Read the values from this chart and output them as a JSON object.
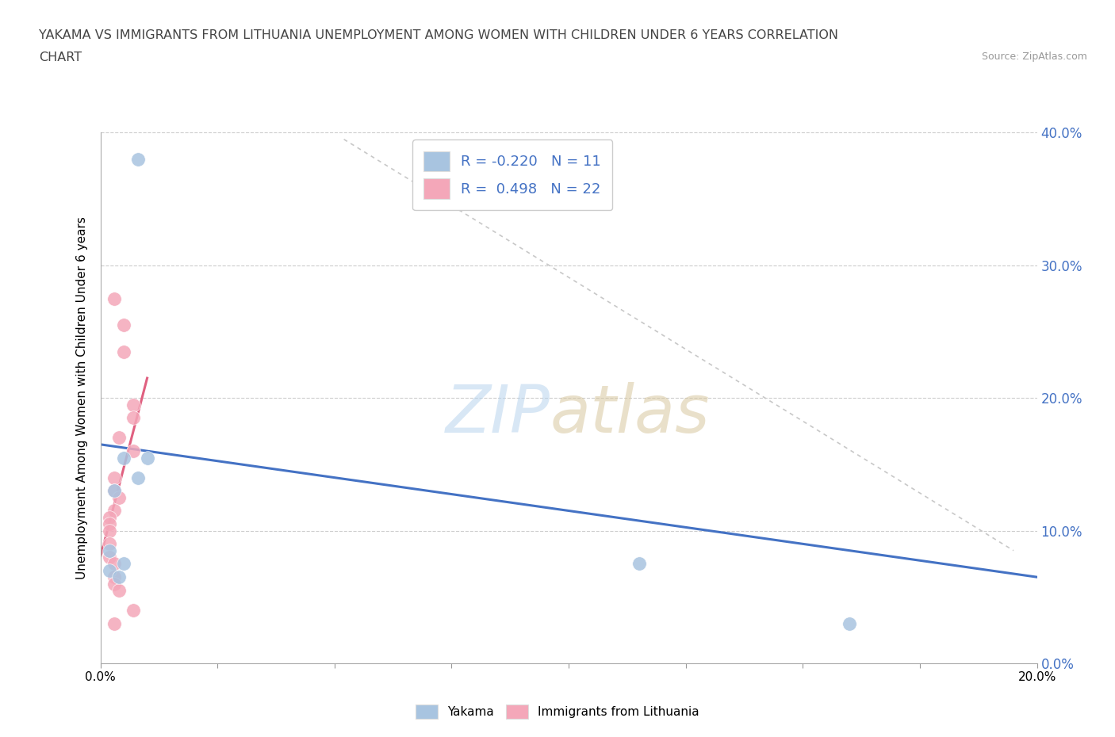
{
  "title_line1": "YAKAMA VS IMMIGRANTS FROM LITHUANIA UNEMPLOYMENT AMONG WOMEN WITH CHILDREN UNDER 6 YEARS CORRELATION",
  "title_line2": "CHART",
  "source": "Source: ZipAtlas.com",
  "ylabel": "Unemployment Among Women with Children Under 6 years",
  "xlim": [
    0,
    0.2
  ],
  "ylim": [
    0,
    0.4
  ],
  "yakama_color": "#a8c4e0",
  "lithuania_color": "#f4a7b9",
  "yakama_line_color": "#4472c4",
  "lithuania_line_color": "#e06080",
  "diag_line_color": "#c8c8c8",
  "R_yakama": -0.22,
  "N_yakama": 11,
  "R_lithuania": 0.498,
  "N_lithuania": 22,
  "yakama_points": [
    [
      0.008,
      0.38
    ],
    [
      0.01,
      0.155
    ],
    [
      0.005,
      0.155
    ],
    [
      0.008,
      0.14
    ],
    [
      0.003,
      0.13
    ],
    [
      0.002,
      0.085
    ],
    [
      0.002,
      0.07
    ],
    [
      0.005,
      0.075
    ],
    [
      0.004,
      0.065
    ],
    [
      0.115,
      0.075
    ],
    [
      0.16,
      0.03
    ]
  ],
  "lithuania_points": [
    [
      0.003,
      0.275
    ],
    [
      0.005,
      0.255
    ],
    [
      0.005,
      0.235
    ],
    [
      0.007,
      0.195
    ],
    [
      0.007,
      0.185
    ],
    [
      0.004,
      0.17
    ],
    [
      0.007,
      0.16
    ],
    [
      0.003,
      0.14
    ],
    [
      0.003,
      0.13
    ],
    [
      0.004,
      0.125
    ],
    [
      0.003,
      0.115
    ],
    [
      0.002,
      0.11
    ],
    [
      0.002,
      0.105
    ],
    [
      0.002,
      0.1
    ],
    [
      0.002,
      0.09
    ],
    [
      0.002,
      0.08
    ],
    [
      0.003,
      0.075
    ],
    [
      0.003,
      0.065
    ],
    [
      0.003,
      0.06
    ],
    [
      0.004,
      0.055
    ],
    [
      0.007,
      0.04
    ],
    [
      0.003,
      0.03
    ]
  ],
  "yak_line_x": [
    0.0,
    0.2
  ],
  "yak_line_y": [
    0.165,
    0.065
  ],
  "lith_line_x": [
    0.0,
    0.01
  ],
  "lith_line_y": [
    0.08,
    0.215
  ],
  "diag_line_x": [
    0.052,
    0.195
  ],
  "diag_line_y": [
    0.395,
    0.085
  ]
}
